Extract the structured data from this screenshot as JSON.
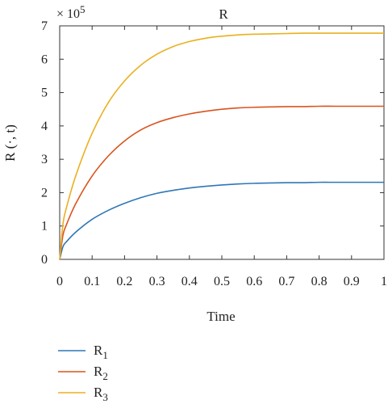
{
  "chart_data": {
    "type": "line",
    "title": "R",
    "xlabel": "Time",
    "ylabel": "R (·, t)",
    "y_multiplier_label": "× 10",
    "y_multiplier_exponent": "5",
    "xlim": [
      0,
      1
    ],
    "ylim": [
      0,
      7
    ],
    "x_ticks": [
      "0",
      "0.1",
      "0.2",
      "0.3",
      "0.4",
      "0.5",
      "0.6",
      "0.7",
      "0.8",
      "0.9",
      "1"
    ],
    "y_ticks": [
      "0",
      "1",
      "2",
      "3",
      "4",
      "5",
      "6",
      "7"
    ],
    "grid": false,
    "legend_position": "bottom-left",
    "x": [
      0,
      0.01,
      0.02,
      0.05,
      0.1,
      0.15,
      0.2,
      0.25,
      0.3,
      0.35,
      0.4,
      0.45,
      0.5,
      0.55,
      0.6,
      0.65,
      0.7,
      0.75,
      0.8,
      0.85,
      0.9,
      0.95,
      1.0
    ],
    "series": [
      {
        "name": "R",
        "subscript": "1",
        "color": "#2f77b6",
        "values": [
          0,
          0.38,
          0.52,
          0.82,
          1.2,
          1.47,
          1.68,
          1.85,
          1.98,
          2.07,
          2.14,
          2.19,
          2.23,
          2.26,
          2.28,
          2.29,
          2.3,
          2.3,
          2.31,
          2.31,
          2.31,
          2.31,
          2.31
        ]
      },
      {
        "name": "R",
        "subscript": "2",
        "color": "#d9541e",
        "values": [
          0,
          0.72,
          1.02,
          1.68,
          2.5,
          3.1,
          3.55,
          3.88,
          4.1,
          4.25,
          4.36,
          4.44,
          4.5,
          4.54,
          4.56,
          4.57,
          4.58,
          4.58,
          4.59,
          4.59,
          4.59,
          4.59,
          4.59
        ]
      },
      {
        "name": "R",
        "subscript": "3",
        "color": "#eab020",
        "values": [
          0,
          1.05,
          1.52,
          2.52,
          3.78,
          4.7,
          5.35,
          5.82,
          6.15,
          6.38,
          6.53,
          6.63,
          6.69,
          6.73,
          6.75,
          6.76,
          6.77,
          6.78,
          6.78,
          6.78,
          6.78,
          6.78,
          6.78
        ]
      }
    ]
  }
}
